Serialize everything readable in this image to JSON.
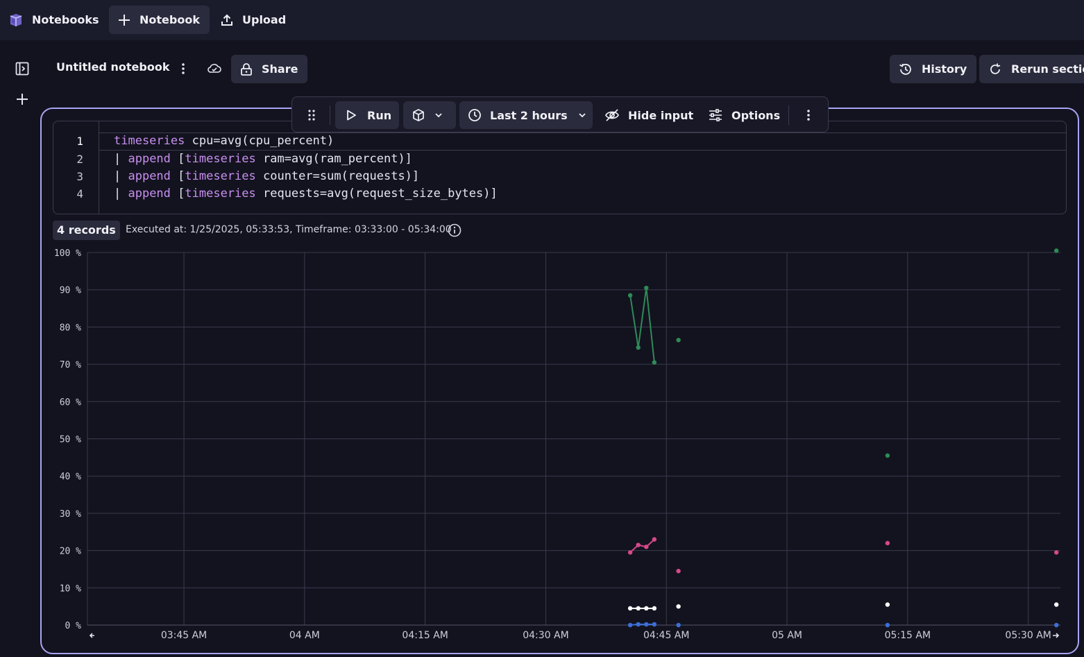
{
  "topbar": {
    "app_name": "Notebooks",
    "new_notebook_label": "Notebook",
    "upload_label": "Upload"
  },
  "header": {
    "title": "Untitled notebook",
    "share_label": "Share",
    "history_label": "History",
    "rerun_label": "Rerun section"
  },
  "cell_toolbar": {
    "run_label": "Run",
    "timeframe_label": "Last 2 hours",
    "hide_input_label": "Hide input",
    "options_label": "Options"
  },
  "editor": {
    "lines": [
      {
        "num": "1",
        "tokens": [
          {
            "t": "timeseries",
            "kw": true
          },
          {
            "t": " cpu=avg(cpu_percent)",
            "kw": false
          }
        ]
      },
      {
        "num": "2",
        "tokens": [
          {
            "t": "| ",
            "kw": false
          },
          {
            "t": "append",
            "kw": true
          },
          {
            "t": " [",
            "kw": false
          },
          {
            "t": "timeseries",
            "kw": true
          },
          {
            "t": " ram=avg(ram_percent)]",
            "kw": false
          }
        ]
      },
      {
        "num": "3",
        "tokens": [
          {
            "t": "| ",
            "kw": false
          },
          {
            "t": "append",
            "kw": true
          },
          {
            "t": " [",
            "kw": false
          },
          {
            "t": "timeseries",
            "kw": true
          },
          {
            "t": " counter=sum(requests)]",
            "kw": false
          }
        ]
      },
      {
        "num": "4",
        "tokens": [
          {
            "t": "| ",
            "kw": false
          },
          {
            "t": "append",
            "kw": true
          },
          {
            "t": " [",
            "kw": false
          },
          {
            "t": "timeseries",
            "kw": true
          },
          {
            "t": " requests=avg(request_size_bytes)]",
            "kw": false
          }
        ]
      }
    ]
  },
  "result": {
    "records_label": "4 records",
    "executed_text": "Executed at: 1/25/2025, 05:33:53, Timeframe: 03:33:00 - 05:34:00"
  },
  "colors": {
    "accent_border": "#a9a5f5",
    "series_green": "#2e8b57",
    "series_pink": "#d6498b",
    "series_white": "#ffffff",
    "series_blue": "#3c6fd8",
    "keyword": "#c88ff0"
  },
  "icons": [
    "notebooks-logo-icon",
    "plus-icon",
    "upload-icon",
    "sidebar-toggle-icon",
    "more-vertical-icon",
    "cloud-sync-icon",
    "lock-icon",
    "history-icon",
    "rerun-icon",
    "drag-handle-icon",
    "play-icon",
    "cube-icon",
    "chevron-down-icon",
    "clock-icon",
    "eye-off-icon",
    "sliders-icon",
    "info-icon",
    "arrow-left-icon",
    "arrow-right-icon"
  ],
  "chart_data": {
    "type": "line",
    "x_unit": "minutes since 03:33",
    "xlim": [
      0,
      121
    ],
    "ylim": [
      0,
      100
    ],
    "y_ticks": [
      "0 %",
      "10 %",
      "20 %",
      "30 %",
      "40 %",
      "50 %",
      "60 %",
      "70 %",
      "80 %",
      "90 %",
      "100 %"
    ],
    "x_ticks": [
      {
        "label": "03:45 AM",
        "x": 12
      },
      {
        "label": "04 AM",
        "x": 27
      },
      {
        "label": "04:15 AM",
        "x": 42
      },
      {
        "label": "04:30 AM",
        "x": 57
      },
      {
        "label": "04:45 AM",
        "x": 72
      },
      {
        "label": "05 AM",
        "x": 87
      },
      {
        "label": "05:15 AM",
        "x": 102
      },
      {
        "label": "05:30 AM",
        "x": 117
      }
    ],
    "grid": true,
    "series": [
      {
        "color": "#2e8b57",
        "points": [
          [
            67.5,
            88.5
          ],
          [
            68.5,
            74.5
          ],
          [
            69.5,
            90.5
          ],
          [
            70.5,
            70.5
          ]
        ],
        "extra_points": [
          [
            73.5,
            76.5
          ],
          [
            99.5,
            45.5
          ],
          [
            120.5,
            100.5
          ]
        ]
      },
      {
        "color": "#d6498b",
        "points": [
          [
            67.5,
            19.5
          ],
          [
            68.5,
            21.5
          ],
          [
            69.5,
            21
          ],
          [
            70.5,
            23
          ]
        ],
        "extra_points": [
          [
            73.5,
            14.5
          ],
          [
            99.5,
            22
          ],
          [
            120.5,
            19.5
          ]
        ]
      },
      {
        "color": "#ffffff",
        "points": [
          [
            67.5,
            4.5
          ],
          [
            68.5,
            4.5
          ],
          [
            69.5,
            4.5
          ],
          [
            70.5,
            4.5
          ]
        ],
        "extra_points": [
          [
            73.5,
            5
          ],
          [
            99.5,
            5.5
          ],
          [
            120.5,
            5.5
          ]
        ]
      },
      {
        "color": "#3c6fd8",
        "points": [
          [
            67.5,
            0
          ],
          [
            68.5,
            0.2
          ],
          [
            69.5,
            0.2
          ],
          [
            70.5,
            0.2
          ]
        ],
        "extra_points": [
          [
            73.5,
            0
          ],
          [
            99.5,
            0
          ],
          [
            120.5,
            0
          ]
        ]
      }
    ]
  }
}
